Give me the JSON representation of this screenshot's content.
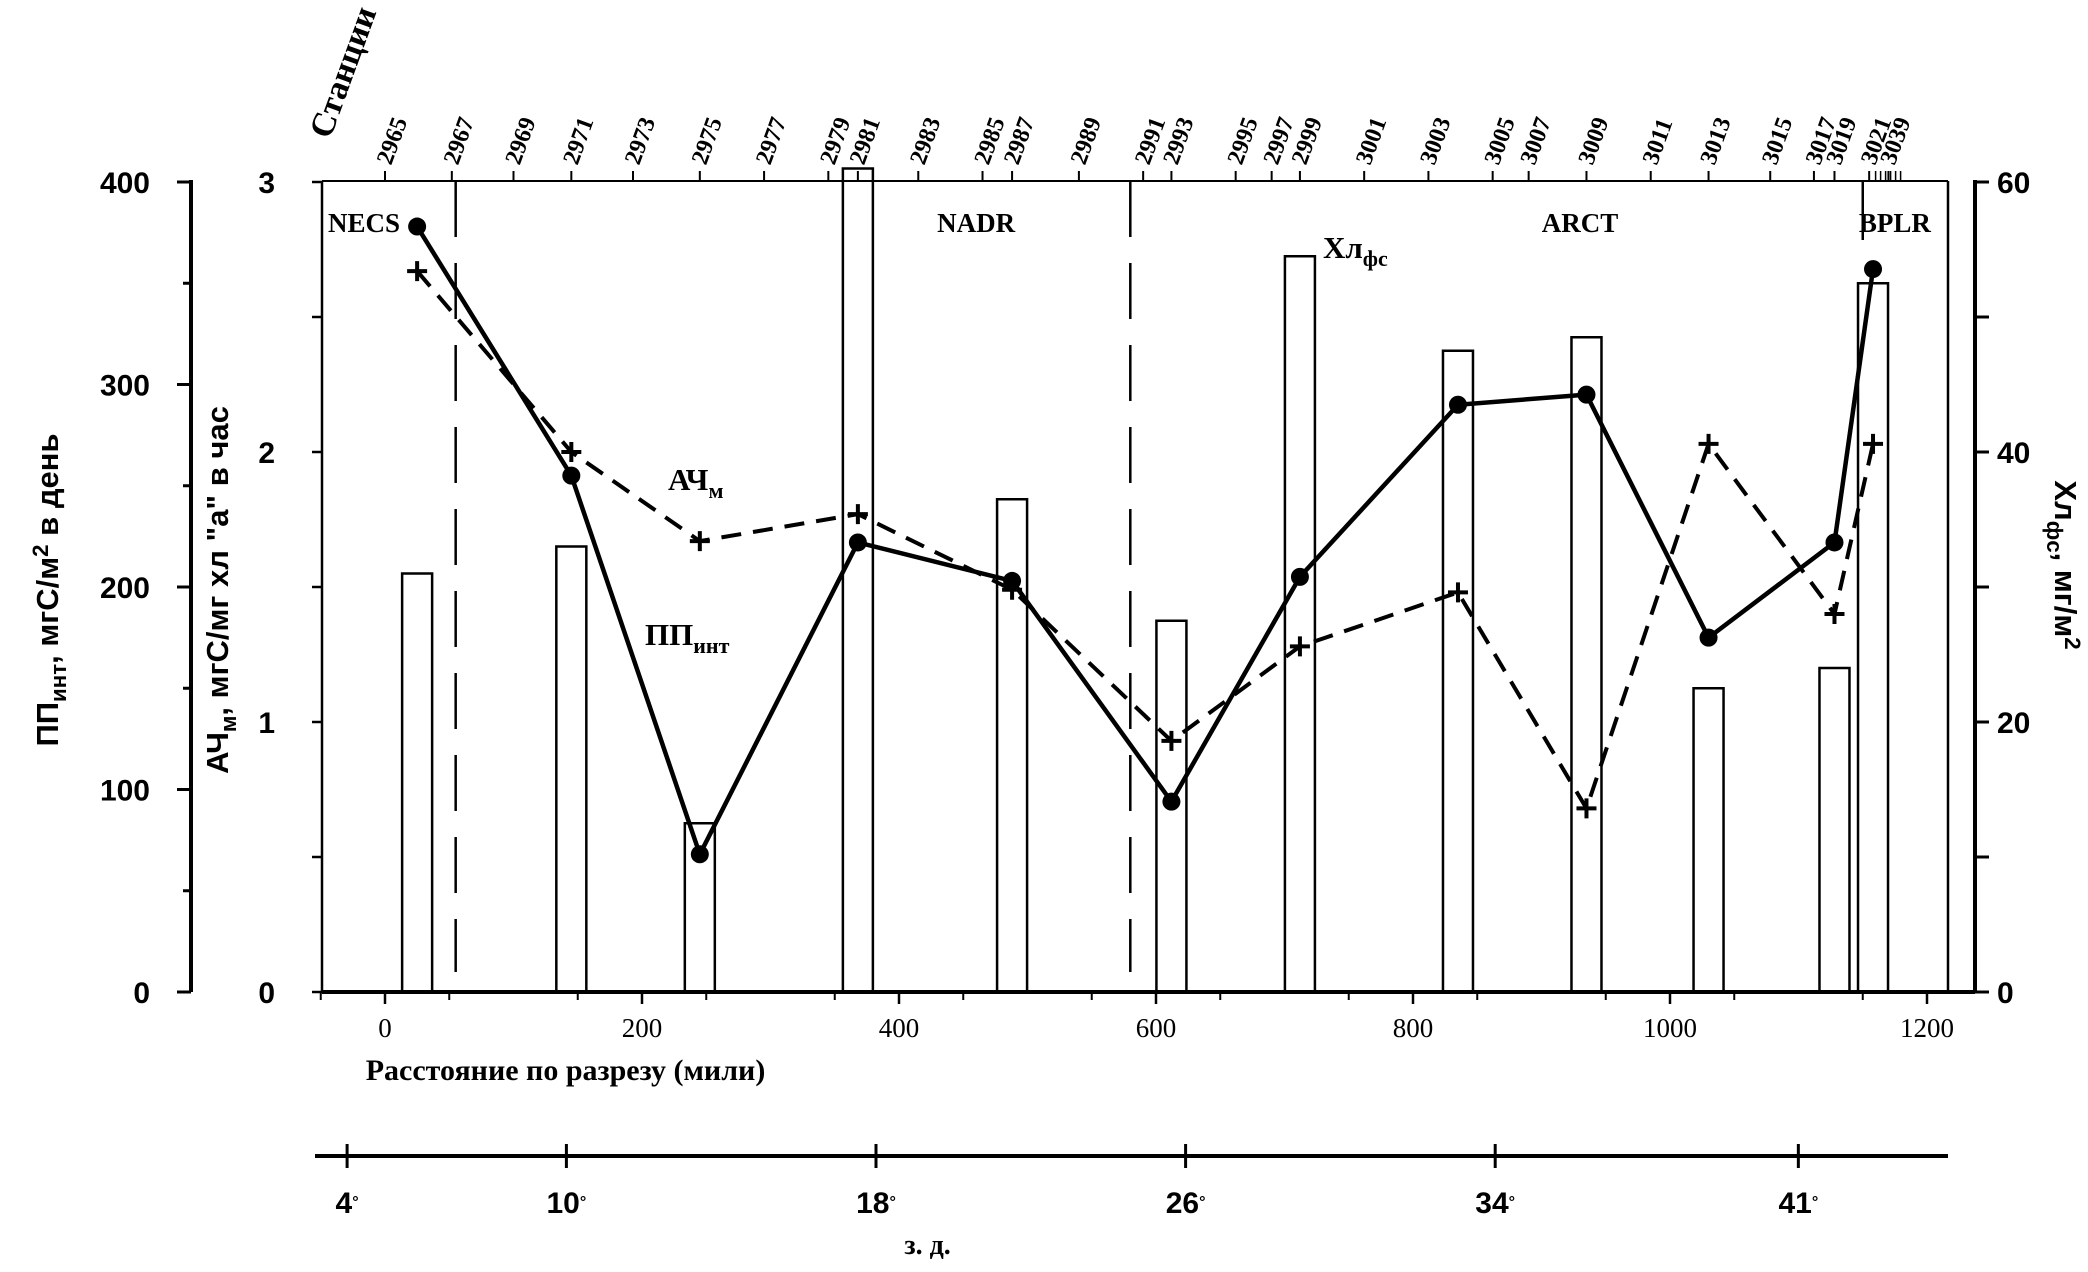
{
  "chart_data": {
    "type": "line",
    "x": [
      25,
      145,
      245,
      368,
      488,
      612,
      712,
      835,
      935,
      1030,
      1128,
      1158
    ],
    "xlabel": "Расстояние по разрезу (мили)",
    "xlim": [
      -50,
      1200
    ],
    "xticks": [
      "0",
      "200",
      "400",
      "600",
      "800",
      "1000",
      "1200"
    ],
    "series": [
      {
        "name": "ПП",
        "name_sub": "инт",
        "axis": "left",
        "style": "solid-circle",
        "values": [
          378,
          255,
          68,
          222,
          203,
          94,
          205,
          290,
          295,
          175,
          222,
          357
        ]
      },
      {
        "name": "АЧ",
        "name_sub": "м",
        "axis": "left-inner",
        "style": "dashed-plus",
        "values": [
          2.67,
          2.0,
          1.67,
          1.77,
          1.49,
          0.93,
          1.28,
          1.48,
          0.68,
          2.03,
          1.4,
          2.03
        ]
      },
      {
        "name": "Хл",
        "name_sub": "фс",
        "axis": "right",
        "style": "bar",
        "values": [
          31,
          33,
          12.5,
          61,
          36.5,
          27.5,
          54.5,
          47.5,
          48.5,
          22.5,
          24,
          52.5
        ]
      }
    ],
    "axes": {
      "left": {
        "label": "ПП",
        "label_sub": "инт",
        "label_rest": ", мгС/м",
        "label_sup": "2",
        "label_end": " в день",
        "ylim": [
          0,
          400
        ],
        "ticks": [
          "0",
          "100",
          "200",
          "300",
          "400"
        ]
      },
      "left_inner": {
        "label": "АЧ",
        "label_sub": "м",
        "label_rest": ", мгС/мг хл \"а\" в час",
        "ylim": [
          0,
          3
        ],
        "ticks": [
          "0",
          "1",
          "2",
          "3"
        ]
      },
      "right": {
        "label": "Хл",
        "label_sub": "фс",
        "label_rest": ", мг/м",
        "label_sup": "2",
        "ylim": [
          0,
          60
        ],
        "ticks": [
          "0",
          "20",
          "40",
          "60"
        ]
      }
    },
    "stations": {
      "title": "Станции",
      "labels": [
        "2965",
        "2967",
        "2969",
        "2971",
        "2973",
        "2975",
        "2977",
        "2979",
        "2981",
        "2983",
        "2985",
        "2987",
        "2989",
        "2991",
        "2993",
        "2995",
        "2997",
        "2999",
        "3001",
        "3003",
        "3005",
        "3007",
        "3009",
        "3011",
        "3013",
        "3015",
        "3017",
        "3019",
        "3021",
        "3039"
      ],
      "positions": [
        0,
        52,
        100,
        145,
        193,
        245,
        295,
        345,
        368,
        415,
        465,
        488,
        540,
        590,
        612,
        662,
        690,
        712,
        762,
        812,
        862,
        890,
        935,
        985,
        1030,
        1078,
        1112,
        1128,
        1155,
        1170
      ]
    },
    "provinces": [
      {
        "label": "NECS",
        "x": 0
      },
      {
        "label": "NADR",
        "x": 460
      },
      {
        "label": "ARCT",
        "x": 930
      },
      {
        "label": "BPLR",
        "x": 1175
      }
    ],
    "province_boundaries": [
      55,
      580,
      1150
    ],
    "longitude": {
      "title": "з. д.",
      "ticks": [
        {
          "label": "4",
          "x": -10
        },
        {
          "label": "10",
          "x": 160
        },
        {
          "label": "18",
          "x": 400
        },
        {
          "label": "26",
          "x": 640
        },
        {
          "label": "34",
          "x": 880
        },
        {
          "label": "41",
          "x": 1115
        }
      ],
      "degree": "°"
    },
    "annotations": [
      {
        "text": "АЧ",
        "sub": "м",
        "series": "АЧ"
      },
      {
        "text": "ПП",
        "sub": "инт",
        "series": "ПП"
      },
      {
        "text": "Хл",
        "sub": "фс",
        "series": "Хл"
      }
    ]
  }
}
